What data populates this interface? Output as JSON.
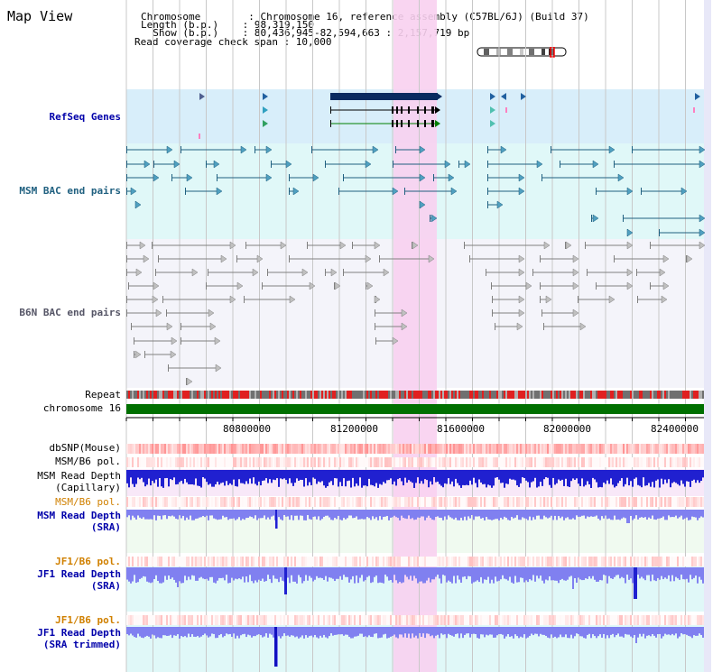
{
  "header": {
    "title": "Map View",
    "chromosome_line": "Chromosome        : Chromosome 16, reference assembly (C57BL/6J) (Build 37)",
    "length_line": "Length (b.p.)    : 98,319,150",
    "show_line": "  Show (b.p.)    : 80,436,945-82,594,663 : 2,157,719 bp",
    "coverage_line": "Read coverage check span : 10,000"
  },
  "tracks": {
    "refseq": "RefSeq Genes",
    "msm_bac": "MSM BAC end pairs",
    "b6n_bac": "B6N BAC end pairs",
    "repeat": "Repeat",
    "chromosome": "chromosome 16",
    "dbsnp": "dbSNP(Mouse)",
    "msm_b6_pol_1": "MSM/B6 pol.",
    "msm_read_depth_cap_1": "MSM Read Depth",
    "msm_read_depth_cap_2": "(Capillary)",
    "msm_b6_pol_2": "MSM/B6 pol.",
    "msm_read_depth_sra_1": "MSM Read Depth",
    "msm_read_depth_sra_2": "(SRA)",
    "jf1_b6_pol_1": "JF1/B6 pol.",
    "jf1_read_depth_sra_1": "JF1 Read Depth",
    "jf1_read_depth_sra_2": "(SRA)",
    "jf1_b6_pol_2": "JF1/B6 pol.",
    "jf1_read_depth_trim_1": "JF1 Read Depth",
    "jf1_read_depth_trim_2": "(SRA trimmed)"
  },
  "axis": {
    "ticks": [
      "80800000",
      "81200000",
      "81600000",
      "82000000",
      "82400000"
    ]
  },
  "colors": {
    "highlight": "#f8d0f0",
    "refseq_bg": "#d8eefa",
    "bac_bg": "#e0f8f8",
    "b6n_bg": "#f4f4fa",
    "chromosome": "#007000",
    "depth_blue": "#2020d0",
    "depth_light": "#8080f0"
  }
}
